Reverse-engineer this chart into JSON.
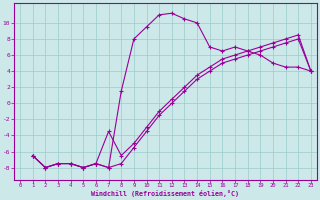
{
  "xlabel": "Windchill (Refroidissement éolien,°C)",
  "background_color": "#cce8e8",
  "grid_color": "#99cccc",
  "line_color": "#990099",
  "xlim": [
    -0.5,
    23.5
  ],
  "ylim": [
    -9.5,
    12.5
  ],
  "xticks": [
    0,
    1,
    2,
    3,
    4,
    5,
    6,
    7,
    8,
    9,
    10,
    11,
    12,
    13,
    14,
    15,
    16,
    17,
    18,
    19,
    20,
    21,
    22,
    23
  ],
  "yticks": [
    -8,
    -6,
    -4,
    -2,
    0,
    2,
    4,
    6,
    8,
    10
  ],
  "line1_x": [
    1,
    2,
    3,
    4,
    5,
    6,
    7,
    8,
    9,
    10,
    11,
    12,
    13,
    14,
    15,
    16,
    17,
    18,
    19,
    20,
    21,
    22,
    23
  ],
  "line1_y": [
    -6.5,
    -8.0,
    -7.5,
    -7.5,
    -8.0,
    -7.5,
    -8.0,
    1.5,
    8.0,
    9.5,
    11.0,
    11.2,
    10.5,
    10.0,
    7.0,
    6.5,
    7.0,
    6.5,
    6.0,
    5.0,
    4.5,
    4.5,
    4.0
  ],
  "line2_x": [
    1,
    2,
    3,
    4,
    5,
    6,
    7,
    8,
    9,
    10,
    11,
    12,
    13,
    14,
    15,
    16,
    17,
    18,
    19,
    20,
    21,
    22,
    23
  ],
  "line2_y": [
    -6.5,
    -8.0,
    -7.5,
    -7.5,
    -8.0,
    -7.5,
    -8.0,
    -7.5,
    -5.5,
    -3.5,
    -1.5,
    0.0,
    1.5,
    3.0,
    4.0,
    5.0,
    5.5,
    6.0,
    6.5,
    7.0,
    7.5,
    8.0,
    4.0
  ],
  "line3_x": [
    1,
    2,
    3,
    4,
    5,
    6,
    7,
    8,
    9,
    10,
    11,
    12,
    13,
    14,
    15,
    16,
    17,
    18,
    19,
    20,
    21,
    22,
    23
  ],
  "line3_y": [
    -6.5,
    -8.0,
    -7.5,
    -7.5,
    -8.0,
    -7.5,
    -3.5,
    -6.5,
    -5.0,
    -3.0,
    -1.0,
    0.5,
    2.0,
    3.5,
    4.5,
    5.5,
    6.0,
    6.5,
    7.0,
    7.5,
    8.0,
    8.5,
    4.0
  ]
}
